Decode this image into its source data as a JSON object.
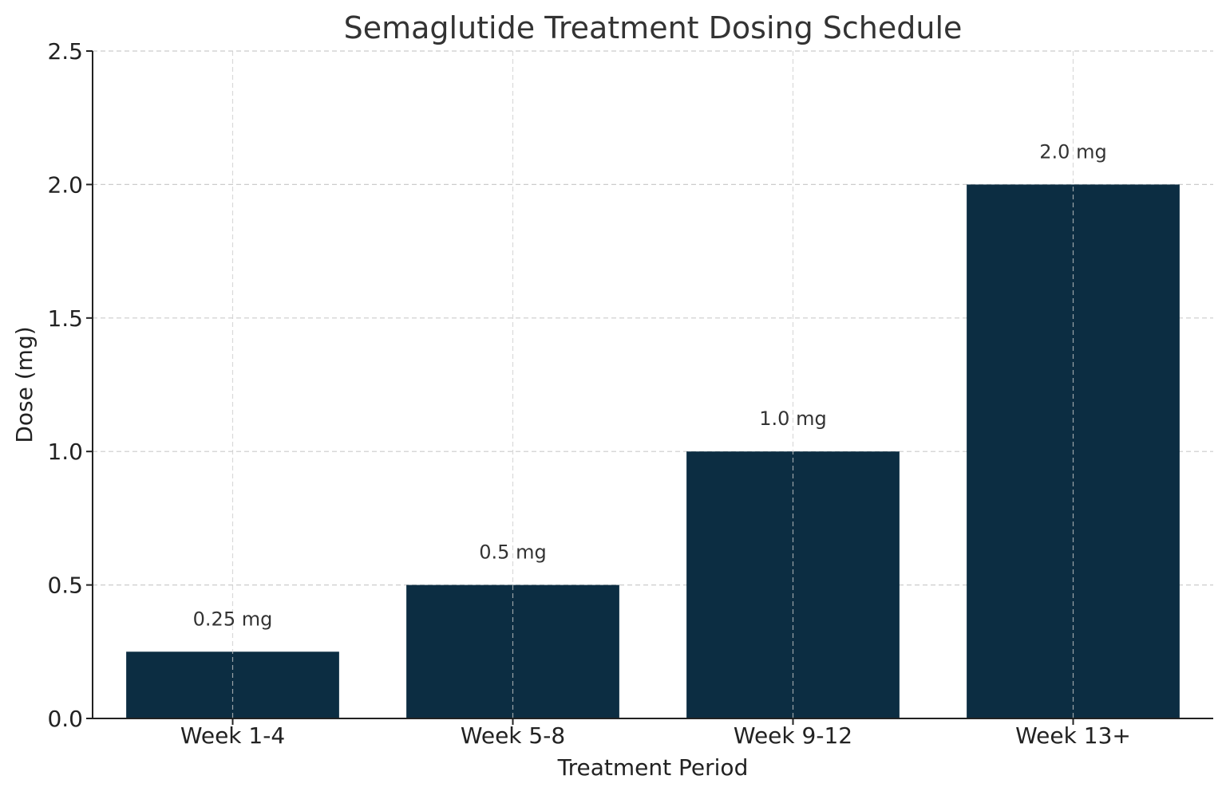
{
  "colors": {
    "bar": "#0c2d42",
    "grid": "#cccccc",
    "axis": "#222222",
    "text": "#333333",
    "background": "#ffffff"
  },
  "chart_data": {
    "type": "bar",
    "title": "Semaglutide Treatment Dosing Schedule",
    "xlabel": "Treatment Period",
    "ylabel": "Dose (mg)",
    "categories": [
      "Week 1-4",
      "Week 5-8",
      "Week 9-12",
      "Week 13+"
    ],
    "values": [
      0.25,
      0.5,
      1.0,
      2.0
    ],
    "data_labels": [
      "0.25 mg",
      "0.5 mg",
      "1.0 mg",
      "2.0 mg"
    ],
    "ylim": [
      0,
      2.5
    ],
    "yticks": [
      0.0,
      0.5,
      1.0,
      1.5,
      2.0,
      2.5
    ],
    "ytick_labels": [
      "0.0",
      "0.5",
      "1.0",
      "1.5",
      "2.0",
      "2.5"
    ],
    "grid": true,
    "legend": "none"
  }
}
